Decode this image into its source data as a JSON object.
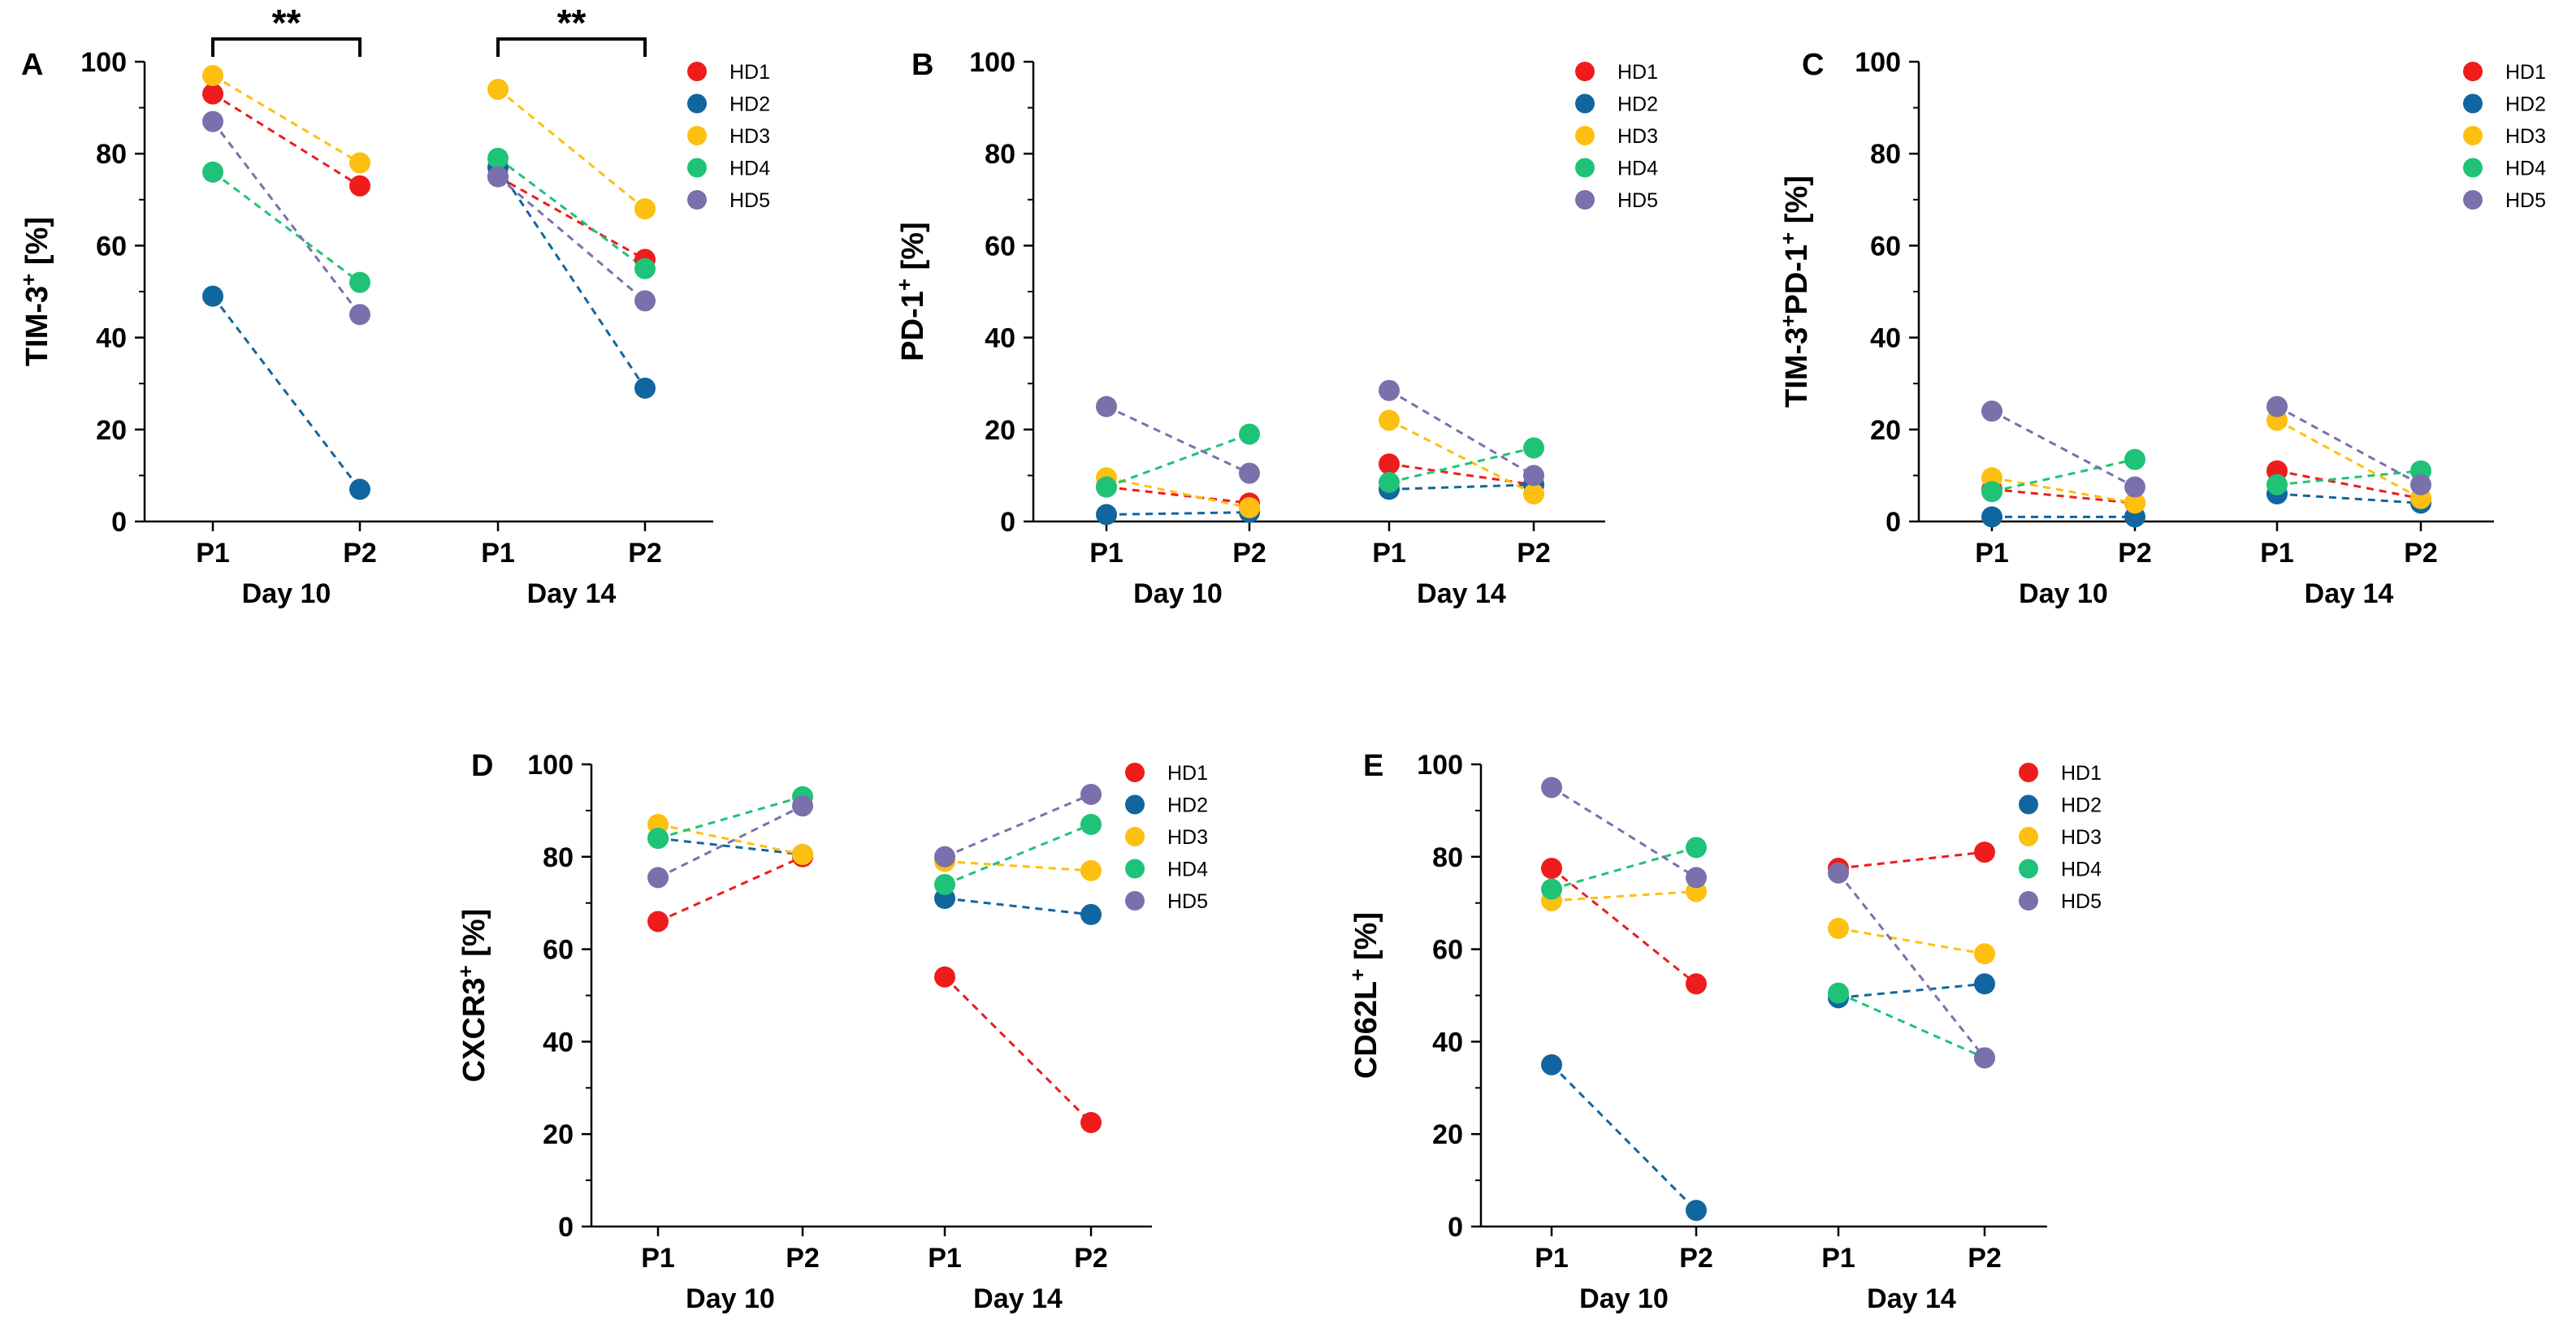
{
  "figure": {
    "series": [
      {
        "name": "HD1",
        "color": "#ee1c1c"
      },
      {
        "name": "HD2",
        "color": "#11669f"
      },
      {
        "name": "HD3",
        "color": "#fdc010"
      },
      {
        "name": "HD4",
        "color": "#1fc377"
      },
      {
        "name": "HD5",
        "color": "#7a70ab"
      }
    ],
    "x_ticks": [
      "P1",
      "P2",
      "P1",
      "P2"
    ],
    "groups": [
      "Day 10",
      "Day 14"
    ]
  },
  "chart_data": [
    {
      "type": "scatter",
      "panel": "A",
      "ylabel": "TIM-3",
      "ylabel_sup": "+",
      "ylabel_suffix": " [%]",
      "ylim": [
        0,
        100
      ],
      "yticks": [
        0,
        20,
        40,
        60,
        80,
        100
      ],
      "categories": [
        "P1",
        "P2",
        "P1",
        "P2"
      ],
      "groups": [
        "Day 10",
        "Day 14"
      ],
      "significance": [
        {
          "label": "**",
          "from": 0,
          "to": 1
        },
        {
          "label": "**",
          "from": 2,
          "to": 3
        }
      ],
      "series": [
        {
          "name": "HD1",
          "values": [
            93,
            73,
            75,
            57
          ]
        },
        {
          "name": "HD2",
          "values": [
            49,
            7,
            77,
            29
          ]
        },
        {
          "name": "HD3",
          "values": [
            97,
            78,
            94,
            68
          ]
        },
        {
          "name": "HD4",
          "values": [
            76,
            52,
            79,
            55
          ]
        },
        {
          "name": "HD5",
          "values": [
            87,
            45,
            75,
            48
          ]
        }
      ]
    },
    {
      "type": "scatter",
      "panel": "B",
      "ylabel": "PD-1",
      "ylabel_sup": "+",
      "ylabel_suffix": " [%]",
      "ylim": [
        0,
        100
      ],
      "yticks": [
        0,
        20,
        40,
        60,
        80,
        100
      ],
      "categories": [
        "P1",
        "P2",
        "P1",
        "P2"
      ],
      "groups": [
        "Day 10",
        "Day 14"
      ],
      "series": [
        {
          "name": "HD1",
          "values": [
            7.5,
            4,
            12.5,
            8
          ]
        },
        {
          "name": "HD2",
          "values": [
            1.5,
            2,
            7,
            8
          ]
        },
        {
          "name": "HD3",
          "values": [
            9.5,
            3,
            22,
            6
          ]
        },
        {
          "name": "HD4",
          "values": [
            7.5,
            19,
            8.5,
            16
          ]
        },
        {
          "name": "HD5",
          "values": [
            25,
            10.5,
            28.5,
            10
          ]
        }
      ]
    },
    {
      "type": "scatter",
      "panel": "C",
      "ylabel": "TIM-3",
      "ylabel_sup": "+",
      "ylabel_mid": "PD-1",
      "ylabel_sup2": "+",
      "ylabel_suffix": " [%]",
      "ylim": [
        0,
        100
      ],
      "yticks": [
        0,
        20,
        40,
        60,
        80,
        100
      ],
      "categories": [
        "P1",
        "P2",
        "P1",
        "P2"
      ],
      "groups": [
        "Day 10",
        "Day 14"
      ],
      "series": [
        {
          "name": "HD1",
          "values": [
            7,
            4,
            11,
            5
          ]
        },
        {
          "name": "HD2",
          "values": [
            1,
            1,
            6,
            4
          ]
        },
        {
          "name": "HD3",
          "values": [
            9.5,
            4,
            22,
            5
          ]
        },
        {
          "name": "HD4",
          "values": [
            6.5,
            13.5,
            8,
            11
          ]
        },
        {
          "name": "HD5",
          "values": [
            24,
            7.5,
            25,
            8
          ]
        }
      ]
    },
    {
      "type": "scatter",
      "panel": "D",
      "ylabel": "CXCR3",
      "ylabel_sup": "+",
      "ylabel_suffix": " [%]",
      "ylim": [
        0,
        100
      ],
      "yticks": [
        0,
        20,
        40,
        60,
        80,
        100
      ],
      "categories": [
        "P1",
        "P2",
        "P1",
        "P2"
      ],
      "groups": [
        "Day 10",
        "Day 14"
      ],
      "series": [
        {
          "name": "HD1",
          "values": [
            66,
            80,
            54,
            22.5
          ]
        },
        {
          "name": "HD2",
          "values": [
            84,
            80.5,
            71,
            67.5
          ]
        },
        {
          "name": "HD3",
          "values": [
            87,
            80.5,
            79,
            77
          ]
        },
        {
          "name": "HD4",
          "values": [
            84,
            93,
            74,
            87
          ]
        },
        {
          "name": "HD5",
          "values": [
            75.5,
            91,
            80,
            93.5
          ]
        }
      ]
    },
    {
      "type": "scatter",
      "panel": "E",
      "ylabel": "CD62L",
      "ylabel_sup": "+",
      "ylabel_suffix": " [%]",
      "ylim": [
        0,
        100
      ],
      "yticks": [
        0,
        20,
        40,
        60,
        80,
        100
      ],
      "categories": [
        "P1",
        "P2",
        "P1",
        "P2"
      ],
      "groups": [
        "Day 10",
        "Day 14"
      ],
      "series": [
        {
          "name": "HD1",
          "values": [
            77.5,
            52.5,
            77.5,
            81
          ]
        },
        {
          "name": "HD2",
          "values": [
            35,
            3.5,
            49.5,
            52.5
          ]
        },
        {
          "name": "HD3",
          "values": [
            70.5,
            72.5,
            64.5,
            59
          ]
        },
        {
          "name": "HD4",
          "values": [
            73,
            82,
            50.5,
            36.5
          ]
        },
        {
          "name": "HD5",
          "values": [
            95,
            75.5,
            76.5,
            36.5
          ]
        }
      ]
    }
  ]
}
